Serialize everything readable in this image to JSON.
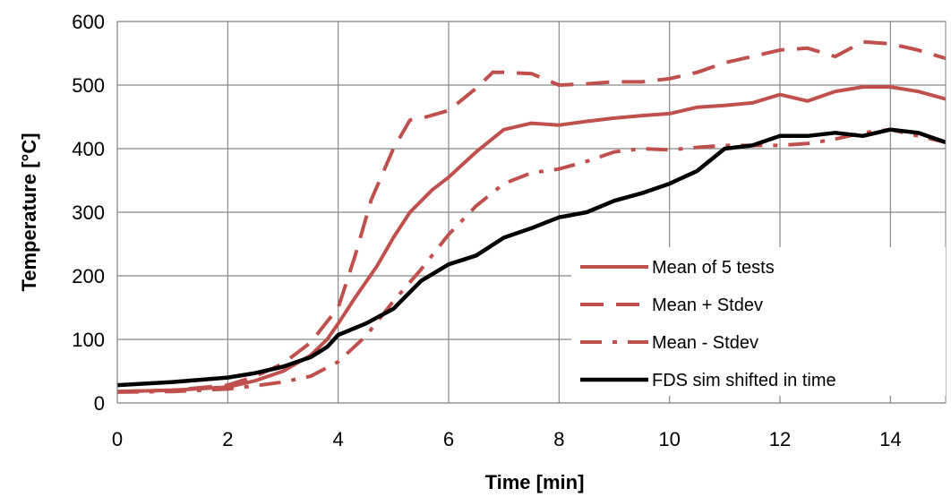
{
  "chart_data": {
    "type": "line",
    "xlabel": "Time [min]",
    "ylabel": "Temperature [°C]",
    "xlim": [
      0,
      15
    ],
    "ylim": [
      0,
      600
    ],
    "xticks": [
      0,
      2,
      4,
      6,
      8,
      10,
      12,
      14
    ],
    "yticks": [
      0,
      100,
      200,
      300,
      400,
      500,
      600
    ],
    "grid": true,
    "legend_position": "lower-right",
    "series": [
      {
        "name": "Mean of 5 tests",
        "color": "#c0504d",
        "dash": "solid",
        "x": [
          0,
          1,
          2,
          2.5,
          3,
          3.5,
          3.8,
          4,
          4.3,
          4.7,
          5,
          5.3,
          5.7,
          6,
          6.5,
          7,
          7.5,
          8,
          8.5,
          9,
          9.5,
          10,
          10.5,
          11,
          11.5,
          12,
          12.5,
          13,
          13.5,
          14,
          14.5,
          15
        ],
        "y": [
          18,
          20,
          25,
          35,
          50,
          75,
          100,
          125,
          165,
          215,
          260,
          300,
          335,
          355,
          395,
          430,
          440,
          437,
          443,
          448,
          452,
          455,
          465,
          468,
          472,
          485,
          475,
          490,
          497,
          497,
          490,
          478
        ]
      },
      {
        "name": "Mean + Stdev",
        "color": "#c0504d",
        "dash": "long",
        "x": [
          0,
          1,
          2,
          2.5,
          3,
          3.5,
          4,
          4.3,
          4.6,
          5,
          5.3,
          5.6,
          6,
          6.5,
          6.8,
          7,
          7.5,
          8,
          8.5,
          9,
          9.5,
          10,
          10.5,
          11,
          11.5,
          12,
          12.5,
          13,
          13.5,
          14,
          14.5,
          15
        ],
        "y": [
          18,
          20,
          28,
          42,
          62,
          95,
          150,
          230,
          320,
          400,
          445,
          450,
          460,
          495,
          520,
          520,
          518,
          500,
          502,
          505,
          505,
          510,
          520,
          535,
          545,
          555,
          558,
          545,
          568,
          565,
          555,
          542
        ]
      },
      {
        "name": "Mean - Stdev",
        "color": "#c0504d",
        "dash": "dashdot",
        "x": [
          0,
          1,
          2,
          2.5,
          3,
          3.5,
          4,
          4.5,
          5,
          5.5,
          6,
          6.5,
          7,
          7.5,
          8,
          8.5,
          9,
          9.5,
          10,
          10.5,
          11,
          11.5,
          12,
          12.5,
          13,
          13.5,
          14,
          14.5,
          15
        ],
        "y": [
          17,
          18,
          22,
          27,
          33,
          42,
          65,
          105,
          160,
          210,
          265,
          310,
          345,
          362,
          368,
          380,
          395,
          400,
          398,
          402,
          405,
          405,
          405,
          408,
          415,
          425,
          430,
          420,
          410
        ]
      },
      {
        "name": "FDS sim shifted in time",
        "color": "#000000",
        "dash": "solid",
        "x": [
          0,
          1,
          2,
          2.5,
          3,
          3.5,
          3.8,
          4,
          4.5,
          5,
          5.5,
          6,
          6.5,
          7,
          7.5,
          8,
          8.5,
          9,
          9.5,
          10,
          10.5,
          11,
          11.5,
          12,
          12.5,
          13,
          13.5,
          14,
          14.5,
          15
        ],
        "y": [
          28,
          33,
          40,
          47,
          57,
          72,
          88,
          107,
          125,
          148,
          192,
          218,
          232,
          260,
          275,
          292,
          300,
          318,
          330,
          345,
          365,
          400,
          405,
          420,
          420,
          425,
          420,
          430,
          425,
          410
        ]
      }
    ]
  }
}
